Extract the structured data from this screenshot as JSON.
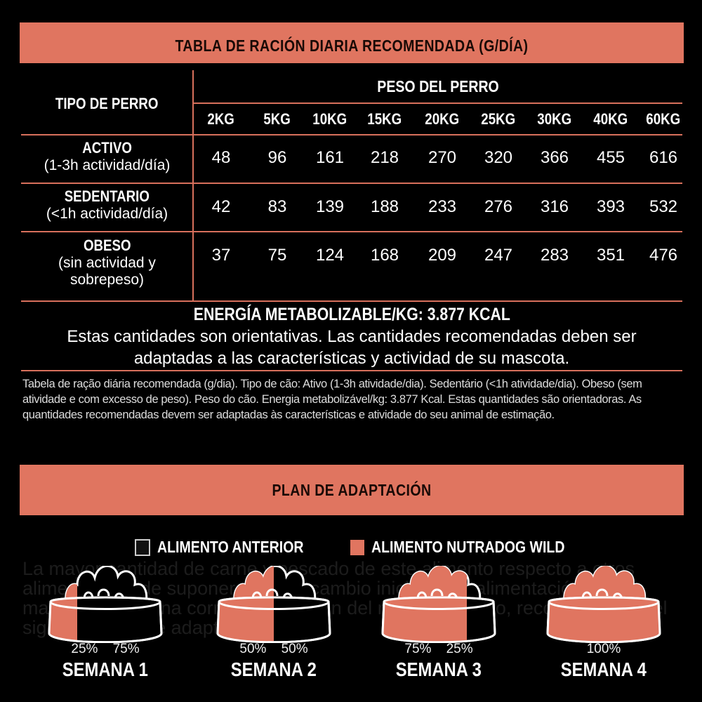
{
  "ration_table": {
    "title": "TABLA DE RACIÓN DIARIA RECOMENDADA (G/DÍA)",
    "type_header": "TIPO DE PERRO",
    "weight_header": "PESO DEL PERRO",
    "weights": [
      "2KG",
      "5KG",
      "10KG",
      "15KG",
      "20KG",
      "25KG",
      "30KG",
      "40KG",
      "60KG"
    ],
    "rows": [
      {
        "name": "ACTIVO",
        "detail": "(1-3h actividad/día)",
        "values": [
          "48",
          "96",
          "161",
          "218",
          "270",
          "320",
          "366",
          "455",
          "616"
        ]
      },
      {
        "name": "SEDENTARIO",
        "detail": "(<1h actividad/día)",
        "values": [
          "42",
          "83",
          "139",
          "188",
          "233",
          "276",
          "316",
          "393",
          "532"
        ]
      },
      {
        "name": "OBESO",
        "detail": "(sin actividad y sobrepeso)",
        "values": [
          "37",
          "75",
          "124",
          "168",
          "209",
          "247",
          "283",
          "351",
          "476"
        ]
      }
    ],
    "energy": "ENERGÍA METABOLIZABLE/KG: 3.877 KCAL",
    "note": "Estas cantidades son orientativas. Las cantidades recomendadas deben ser adaptadas a las características y actividad de su mascota.",
    "portuguese": "Tabela de ração diária recomendada (g/dia). Tipo de cão: Ativo (1-3h atividade/dia). Sedentário (<1h atividade/dia). Obeso (sem atividade e com excesso de peso). Peso do cão. Energia metabolizável/kg: 3.877 Kcal. Estas quantidades são orientadoras. As quantidades recomendadas devem ser adaptadas às características e atividade do seu animal de estimação."
  },
  "adaptation": {
    "title": "PLAN DE ADAPTACIÓN",
    "background_text": "La mayor cantidad de carne y pescado de este alimento respecto a otros alimentos puede suponer un gran cambio inicial en la alimentación de su mascota. Para una correcta transición del nuevo alimento, recomendamos el siguiente plan de adaptación.",
    "legend": [
      {
        "label": "ALIMENTO ANTERIOR",
        "color": "#111111"
      },
      {
        "label": "ALIMENTO NUTRADOG WILD",
        "color": "#e07560"
      }
    ],
    "weeks": [
      {
        "label": "SEMANA 1",
        "new_pct": 25,
        "new_text": "25%",
        "old_text": "75%"
      },
      {
        "label": "SEMANA 2",
        "new_pct": 50,
        "new_text": "50%",
        "old_text": "50%"
      },
      {
        "label": "SEMANA 3",
        "new_pct": 75,
        "new_text": "75%",
        "old_text": "25%"
      },
      {
        "label": "SEMANA 4",
        "new_pct": 100,
        "new_text": "100%",
        "old_text": ""
      }
    ]
  },
  "colors": {
    "accent": "#e07560",
    "background": "#000000",
    "text": "#ffffff"
  }
}
